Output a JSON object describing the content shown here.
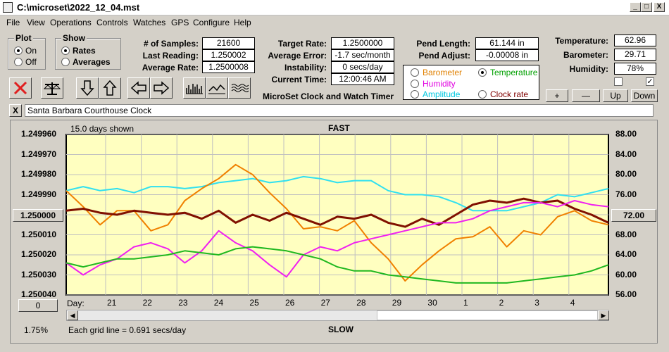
{
  "window": {
    "title": "C:\\microset\\2022_12_04.mst",
    "min_label": "_",
    "max_label": "□",
    "close_label": "X"
  },
  "menu": [
    "File",
    "View",
    "Operations",
    "Controls",
    "Watches",
    "GPS",
    "Configure",
    "Help"
  ],
  "plot_group": {
    "title": "Plot",
    "options": [
      "On",
      "Off"
    ],
    "selected": "On"
  },
  "show_group": {
    "title": "Show",
    "options": [
      "Rates",
      "Averages"
    ],
    "selected": "Rates"
  },
  "readings": {
    "samples_label": "# of Samples:",
    "samples": "21600",
    "last_label": "Last Reading:",
    "last": "1.250002",
    "avg_label": "Average Rate:",
    "avg": "1.2500008"
  },
  "rates": {
    "target_label": "Target Rate:",
    "target": "1.2500000",
    "error_label": "Average Error:",
    "error": "-1.7 sec/month",
    "instab_label": "Instability:",
    "instab": "0 secs/day",
    "time_label": "Current Time:",
    "time": "12:00:46 AM"
  },
  "pend": {
    "length_label": "Pend Length:",
    "length": "61.144 in",
    "adjust_label": "Pend Adjust:",
    "adjust": "-0.00008 in"
  },
  "app_title": "MicroSet Clock and Watch Timer",
  "env": {
    "temp_label": "Temperature:",
    "temp": "62.96",
    "baro_label": "Barometer:",
    "baro": "29.71",
    "hum_label": "Humidity:",
    "hum": "78%"
  },
  "overlay_options": {
    "barometer": {
      "label": "Barometer",
      "color": "#e08000",
      "selected": false
    },
    "temperature": {
      "label": "Temperature",
      "color": "#00a000",
      "selected": true
    },
    "humidity": {
      "label": "Humidity",
      "color": "#e000e0",
      "selected": false
    },
    "amplitude": {
      "label": "Amplitude",
      "color": "#00c8e0",
      "selected": false
    },
    "clock_rate": {
      "label": "Clock rate",
      "color": "#800000",
      "selected": false
    }
  },
  "scale_buttons": [
    "+",
    "—",
    "Up",
    "Down"
  ],
  "checkboxes": [
    false,
    true
  ],
  "clock_name": "Santa Barbara Courthouse Clock",
  "clear_label": "X",
  "chart_data": {
    "type": "line",
    "title": "FAST",
    "bottom_title": "SLOW",
    "days_shown": "15.0 days shown",
    "grid_note": "Each grid line = 0.691 secs/day",
    "left_center_button": "1.250000",
    "right_center_button": "72.00",
    "left_bottom_button": "0",
    "bottom_left_readout": "1.75%",
    "x_label_prefix": "Day:",
    "x_ticks": [
      "21",
      "22",
      "23",
      "24",
      "25",
      "26",
      "27",
      "28",
      "29",
      "30",
      "1",
      "2",
      "3",
      "4"
    ],
    "y_left_ticks": [
      "1.249960",
      "1.249970",
      "1.249980",
      "1.249990",
      "1.250000",
      "1.250010",
      "1.250020",
      "1.250030",
      "1.250040"
    ],
    "y_right_ticks": [
      "88.00",
      "84.00",
      "80.00",
      "76.00",
      "72.00",
      "68.00",
      "64.00",
      "60.00",
      "56.00"
    ],
    "y_left_range": [
      1.24996,
      1.25004
    ],
    "y_right_range": [
      56,
      88
    ],
    "grid": true,
    "series": [
      {
        "name": "Amplitude",
        "color": "#30e0f0",
        "values": [
          1.249988,
          1.249986,
          1.249988,
          1.249987,
          1.249989,
          1.249986,
          1.249986,
          1.249987,
          1.249986,
          1.249984,
          1.249983,
          1.249982,
          1.249984,
          1.249983,
          1.249981,
          1.249982,
          1.249984,
          1.249983,
          1.249983,
          1.249988,
          1.24999,
          1.24999,
          1.249991,
          1.249994,
          1.249998,
          1.249998,
          1.249998,
          1.249996,
          1.249994,
          1.24999,
          1.249991,
          1.249989,
          1.249987
        ]
      },
      {
        "name": "Barometer",
        "color": "#f08000",
        "values": [
          1.249988,
          1.249996,
          1.250005,
          1.249998,
          1.249998,
          1.250008,
          1.250005,
          1.249993,
          1.249987,
          1.249982,
          1.249975,
          1.24998,
          1.249989,
          1.249997,
          1.250007,
          1.250006,
          1.250008,
          1.250003,
          1.250014,
          1.250022,
          1.250033,
          1.250025,
          1.250018,
          1.250012,
          1.250011,
          1.250006,
          1.250016,
          1.250008,
          1.25001,
          1.250001,
          1.249998,
          1.250003,
          1.250005
        ]
      },
      {
        "name": "Clock rate",
        "color": "#801000",
        "values": [
          1.249998,
          1.249997,
          1.249999,
          1.25,
          1.249998,
          1.249999,
          1.25,
          1.249999,
          1.250002,
          1.249998,
          1.250004,
          1.25,
          1.250003,
          1.249999,
          1.250002,
          1.250005,
          1.250001,
          1.250002,
          1.25,
          1.250004,
          1.250006,
          1.250002,
          1.250005,
          1.25,
          1.249995,
          1.249993,
          1.249994,
          1.249992,
          1.249994,
          1.249993,
          1.249997,
          1.25,
          1.250004
        ]
      },
      {
        "name": "Humidity",
        "color": "#f020f0",
        "values": [
          1.250024,
          1.25003,
          1.250025,
          1.250022,
          1.250016,
          1.250014,
          1.250017,
          1.250024,
          1.250018,
          1.250008,
          1.250014,
          1.250018,
          1.250025,
          1.250031,
          1.25002,
          1.250016,
          1.250018,
          1.250014,
          1.250012,
          1.25001,
          1.250008,
          1.250006,
          1.250004,
          1.250004,
          1.250002,
          1.249998,
          1.249996,
          1.249994,
          1.249994,
          1.249996,
          1.249993,
          1.249995,
          1.249996
        ]
      },
      {
        "name": "Temperature",
        "color": "#20b820",
        "values": [
          1.250024,
          1.250026,
          1.250024,
          1.250022,
          1.250022,
          1.250021,
          1.25002,
          1.250018,
          1.250019,
          1.25002,
          1.250017,
          1.250016,
          1.250017,
          1.250018,
          1.25002,
          1.250022,
          1.250026,
          1.250028,
          1.250028,
          1.25003,
          1.250031,
          1.250032,
          1.250033,
          1.250034,
          1.250034,
          1.250034,
          1.250034,
          1.250033,
          1.250032,
          1.250031,
          1.25003,
          1.250028,
          1.250025
        ]
      }
    ]
  }
}
